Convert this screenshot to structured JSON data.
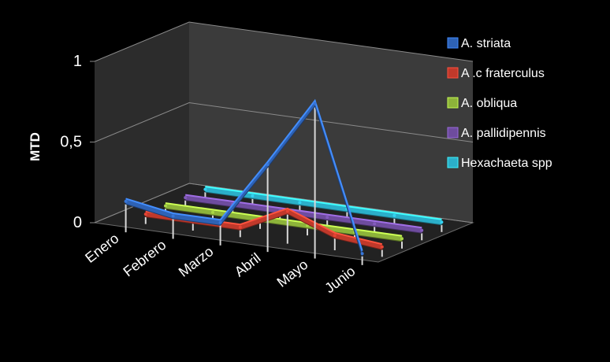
{
  "chart_data": {
    "type": "line",
    "variant": "3d-ribbon",
    "title": "",
    "xlabel": "",
    "ylabel": "MTD",
    "ylim": [
      0,
      1
    ],
    "yticks": [
      "0",
      "0,5",
      "1"
    ],
    "categories": [
      "Enero",
      "Febrero",
      "Marzo",
      "Abril",
      "Mayo",
      "Junio"
    ],
    "grid": true,
    "legend_position": "right",
    "series": [
      {
        "name": "A. striata",
        "color": "#2E62B5",
        "values": [
          0.15,
          0.1,
          0.1,
          0.5,
          0.92,
          0.03
        ]
      },
      {
        "name": "A .c fraterculus",
        "color": "#C0392B",
        "values": [
          0.02,
          0.02,
          0.02,
          0.16,
          0.05,
          0.02
        ]
      },
      {
        "name": "A. obliqua",
        "color": "#8DB33A",
        "values": [
          0.02,
          0.02,
          0.02,
          0.02,
          0.02,
          0.02
        ]
      },
      {
        "name": "A. pallidipennis",
        "color": "#6E4C9E",
        "values": [
          0.02,
          0.02,
          0.02,
          0.02,
          0.02,
          0.02
        ]
      },
      {
        "name": "Hexachaeta spp",
        "color": "#2BAFC9",
        "values": [
          0.02,
          0.02,
          0.02,
          0.02,
          0.02,
          0.02
        ]
      }
    ]
  }
}
